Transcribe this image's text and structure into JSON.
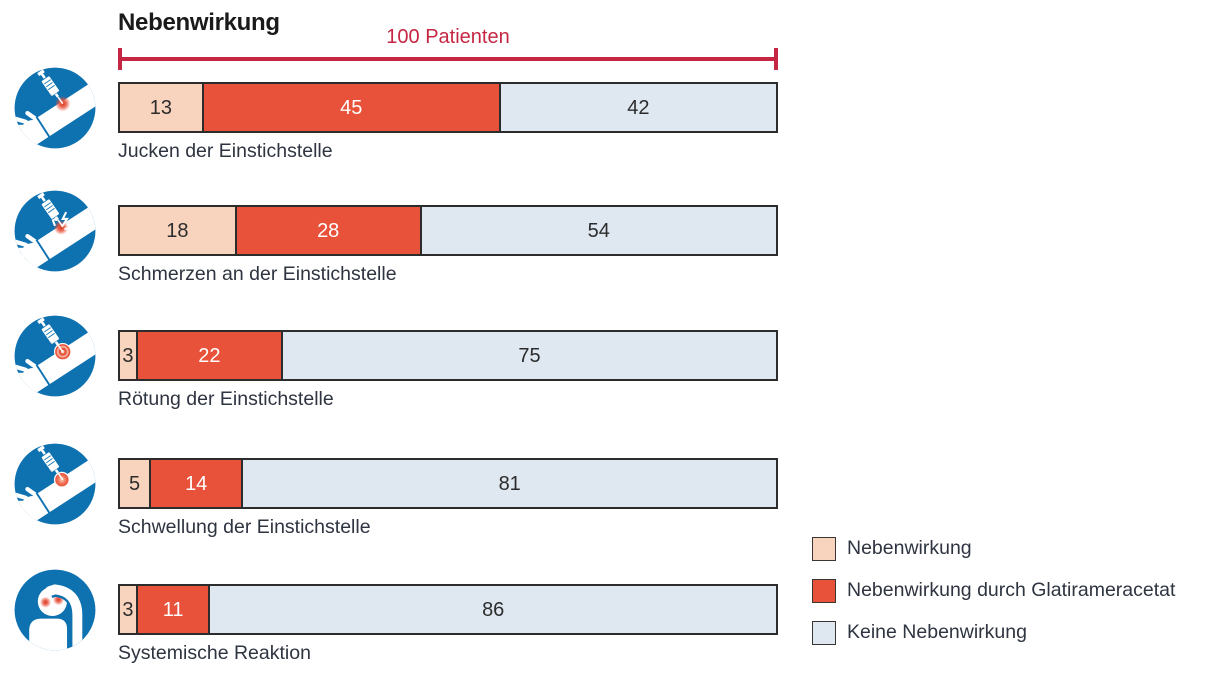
{
  "colors": {
    "side_effect": "#F8D4BF",
    "side_effect_glatiramer": "#E8513A",
    "no_side_effect": "#DFE7F0",
    "bracket_red": "#C52743",
    "segment_border": "#2C2C2C",
    "icon_blue": "#0E71B0",
    "text_dark": "#2E3440"
  },
  "icons": [
    "injection-itch-icon",
    "injection-pain-icon",
    "injection-redness-icon",
    "injection-swelling-icon",
    "systemic-reaction-icon"
  ],
  "chart_data": {
    "type": "bar",
    "orientation": "horizontal",
    "stacked": true,
    "title": "Nebenwirkung",
    "annotation": "100 Patienten",
    "total": 100,
    "grid": false,
    "legend_position": "bottom-right",
    "series_names": [
      "Nebenwirkung",
      "Nebenwirkung durch Glatirameracetat",
      "Keine Nebenwirkung"
    ],
    "series_colors": [
      "#F8D4BF",
      "#E8513A",
      "#DFE7F0"
    ],
    "series_text_colors": [
      "#2C2C2C",
      "#FFFFFF",
      "#2C2C2C"
    ],
    "rows": [
      {
        "label": "Jucken der Einstichstelle",
        "icon": "injection-itch-icon",
        "values": [
          13,
          45,
          42
        ]
      },
      {
        "label": "Schmerzen an der Einstichstelle",
        "icon": "injection-pain-icon",
        "values": [
          18,
          28,
          54
        ]
      },
      {
        "label": "Rötung der Einstichstelle",
        "icon": "injection-redness-icon",
        "values": [
          3,
          22,
          75
        ]
      },
      {
        "label": "Schwellung der Einstichstelle",
        "icon": "injection-swelling-icon",
        "values": [
          5,
          14,
          81
        ]
      },
      {
        "label": "Systemische Reaktion",
        "icon": "systemic-reaction-icon",
        "values": [
          3,
          11,
          86
        ]
      }
    ],
    "legend": [
      {
        "label": "Nebenwirkung",
        "color": "#F8D4BF"
      },
      {
        "label": "Nebenwirkung durch Glatirameracetat",
        "color": "#E8513A"
      },
      {
        "label": "Keine Nebenwirkung",
        "color": "#DFE7F0"
      }
    ]
  }
}
